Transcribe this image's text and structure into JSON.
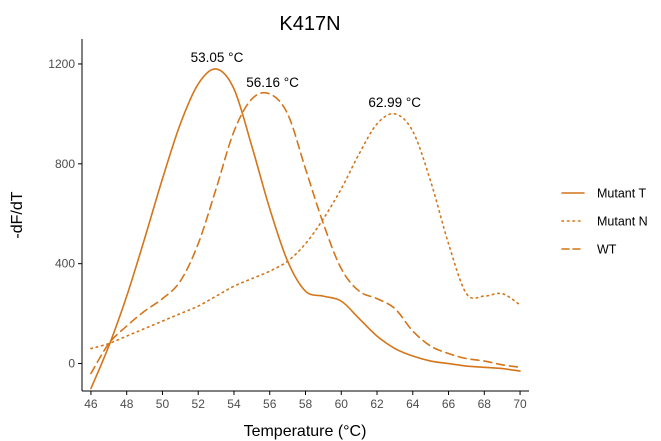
{
  "chart_data": {
    "type": "line",
    "title": "K417N",
    "xlabel": "Temperature (°C)",
    "ylabel": "-dF/dT",
    "xlim": [
      45.5,
      70.5
    ],
    "ylim": [
      -110,
      1300
    ],
    "xticks": [
      46,
      48,
      50,
      52,
      54,
      56,
      58,
      60,
      62,
      64,
      66,
      68,
      70
    ],
    "yticks": [
      0,
      400,
      800,
      1200
    ],
    "grid": false,
    "legend_position": "right",
    "colors": {
      "series": "#d4751a",
      "axis": "#000000",
      "tick_text": "#4d4d4d"
    },
    "series": [
      {
        "name": "Mutant T",
        "line_style": "solid",
        "x": [
          46,
          47,
          48,
          49,
          50,
          51,
          52,
          53,
          54,
          55,
          56,
          57,
          58,
          59,
          60,
          61,
          62,
          63,
          64,
          65,
          66,
          67,
          68,
          69,
          70
        ],
        "y": [
          -100,
          70,
          270,
          500,
          740,
          960,
          1120,
          1180,
          1100,
          870,
          620,
          410,
          290,
          270,
          250,
          180,
          110,
          60,
          30,
          10,
          0,
          -10,
          -15,
          -20,
          -30
        ]
      },
      {
        "name": "Mutant N",
        "line_style": "dotted",
        "x": [
          46,
          47,
          48,
          49,
          50,
          51,
          52,
          53,
          54,
          55,
          56,
          57,
          58,
          59,
          60,
          61,
          62,
          63,
          64,
          65,
          66,
          67,
          68,
          69,
          70
        ],
        "y": [
          60,
          80,
          110,
          140,
          170,
          200,
          230,
          270,
          310,
          340,
          370,
          410,
          480,
          580,
          700,
          840,
          960,
          1000,
          930,
          730,
          480,
          280,
          270,
          280,
          235
        ]
      },
      {
        "name": "WT",
        "line_style": "dashed",
        "x": [
          46,
          47,
          48,
          49,
          50,
          51,
          52,
          53,
          54,
          55,
          56,
          57,
          58,
          59,
          60,
          61,
          62,
          63,
          64,
          65,
          66,
          67,
          68,
          69,
          70
        ],
        "y": [
          -40,
          80,
          150,
          210,
          260,
          330,
          480,
          700,
          930,
          1060,
          1080,
          1000,
          780,
          560,
          380,
          290,
          260,
          220,
          130,
          70,
          40,
          20,
          10,
          -5,
          -15
        ]
      }
    ],
    "annotations": [
      {
        "text": "53.05 °C",
        "x": 53.05,
        "y": 1180
      },
      {
        "text": "56.16 °C",
        "x": 56.16,
        "y": 1080
      },
      {
        "text": "62.99 °C",
        "x": 62.99,
        "y": 1000
      }
    ]
  }
}
